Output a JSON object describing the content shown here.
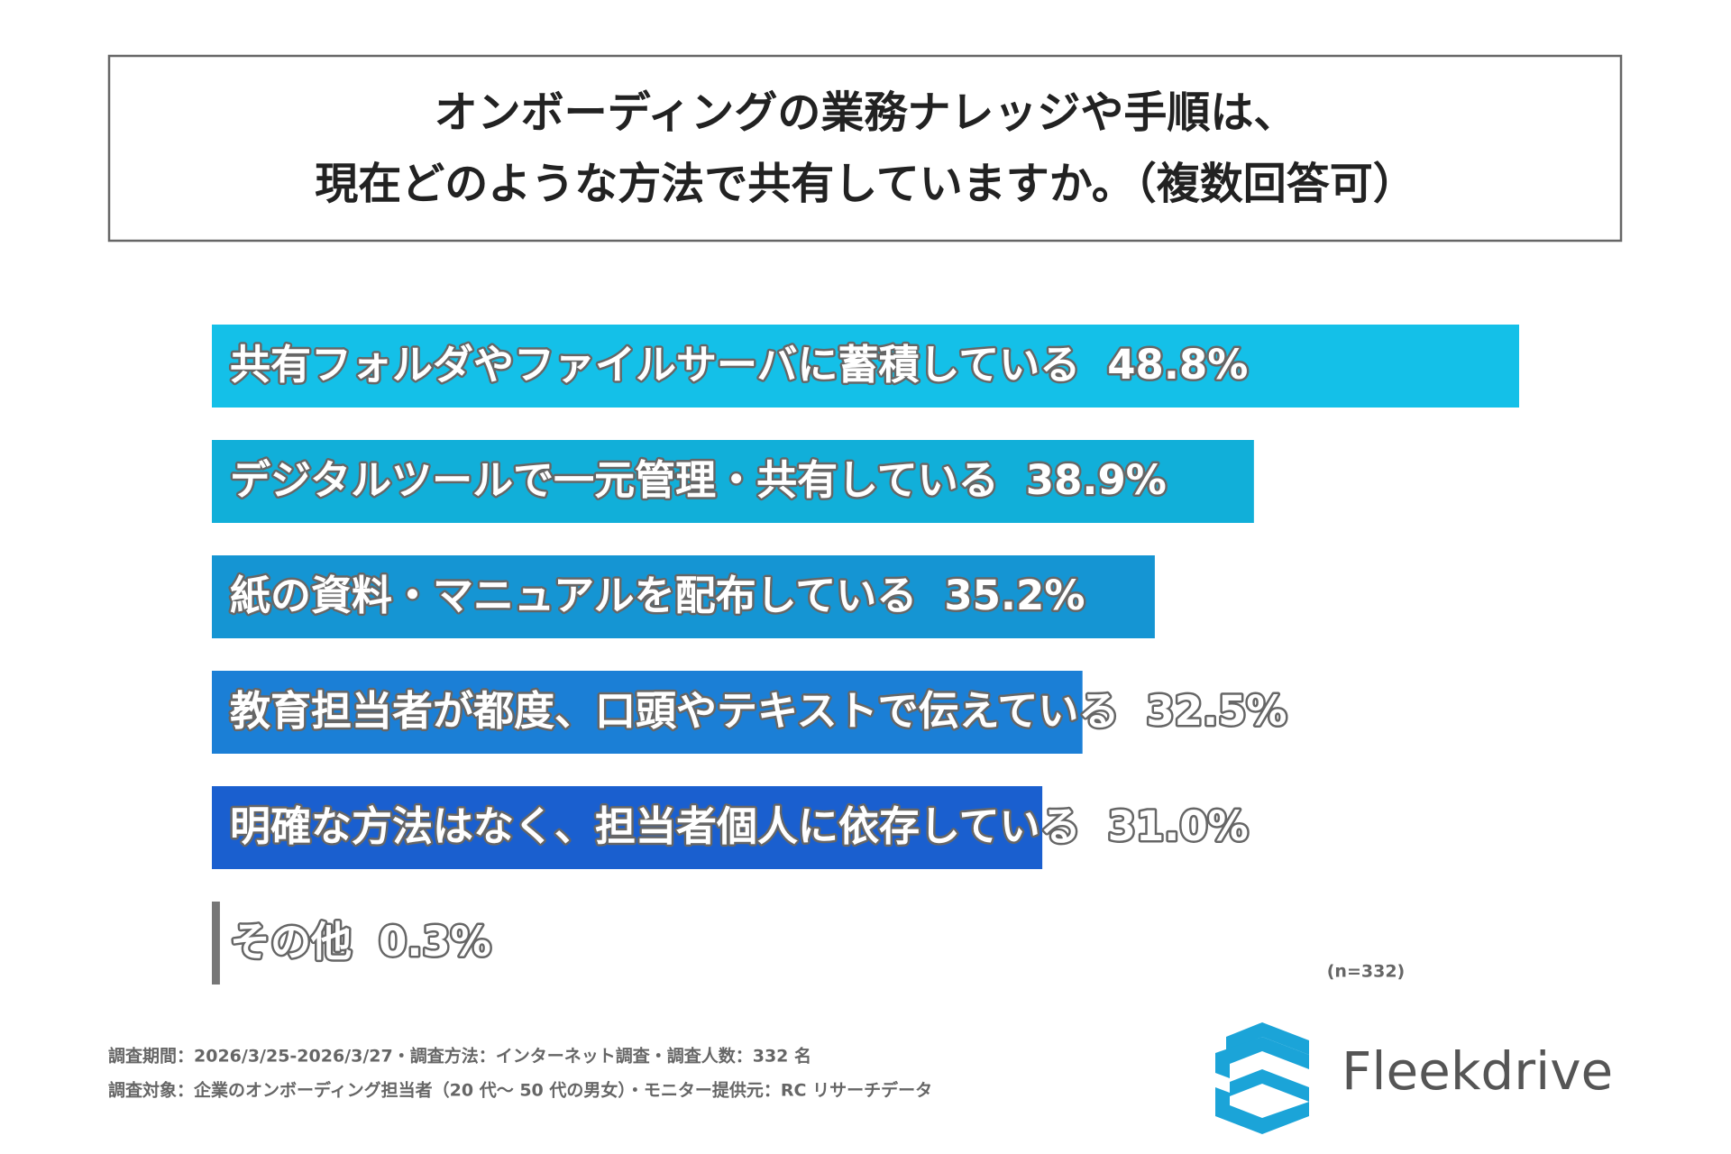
{
  "chart_data": {
    "type": "bar",
    "orientation": "horizontal",
    "title": [
      "オンボーディングの業務ナレッジや手順は、",
      "現在どのような方法で共有していますか。（複数回答可）"
    ],
    "categories": [
      "共有フォルダやファイルサーバに蓄積している",
      "デジタルツールで一元管理・共有している",
      "紙の資料・マニュアルを配布している",
      "教育担当者が都度、口頭やテキストで伝えている",
      "明確な方法はなく、担当者個人に依存している",
      "その他"
    ],
    "values": [
      48.8,
      38.9,
      35.2,
      32.5,
      31.0,
      0.3
    ],
    "value_labels": [
      "48.8%",
      "38.9%",
      "35.2%",
      "32.5%",
      "31.0%",
      "0.3%"
    ],
    "colors": [
      "#14c0e8",
      "#11afd9",
      "#1595d3",
      "#1b7fd6",
      "#1a5fcf",
      "#777777"
    ],
    "sample_note": "(n=332)"
  },
  "footer": {
    "lines": [
      "調査期間：2026/3/25-2026/3/27・調査方法：インターネット調査・調査人数：332 名",
      "調査対象：企業のオンボーディング担当者（20 代～ 50 代の男女）・モニター提供元：RC リサーチデータ"
    ],
    "logo": "Fleekdrive"
  }
}
